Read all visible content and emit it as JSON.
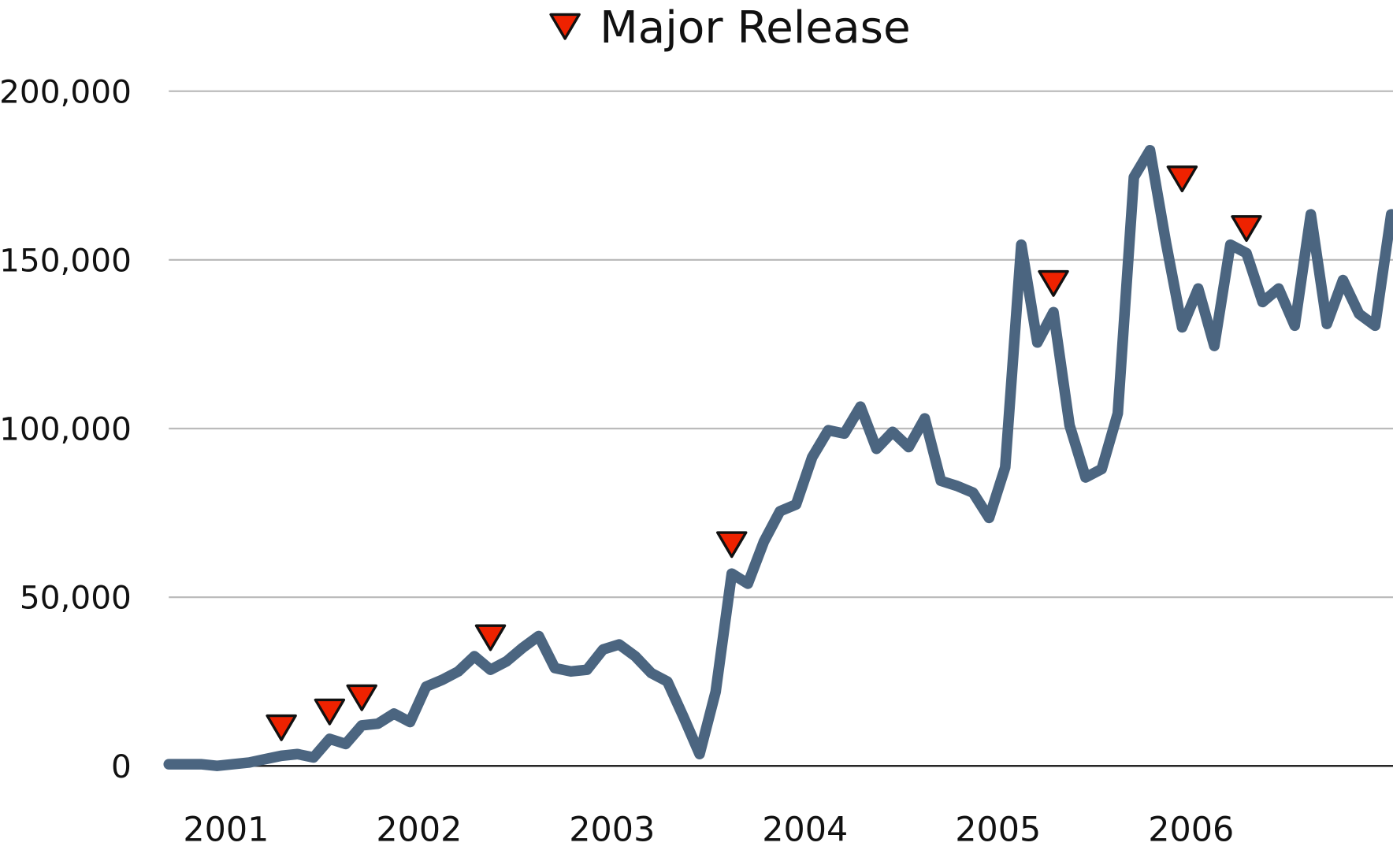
{
  "chart_data": {
    "type": "line",
    "categories": [
      null,
      null,
      null,
      null,
      "2001",
      null,
      null,
      null,
      null,
      null,
      null,
      null,
      null,
      null,
      null,
      null,
      "2002",
      null,
      null,
      null,
      null,
      null,
      null,
      null,
      null,
      null,
      null,
      null,
      "2003",
      null,
      null,
      null,
      null,
      null,
      null,
      null,
      null,
      null,
      null,
      null,
      "2004",
      null,
      null,
      null,
      null,
      null,
      null,
      null,
      null,
      null,
      null,
      null,
      "2005",
      null,
      null,
      null,
      null,
      null,
      null,
      null,
      null,
      null,
      null,
      null,
      "2006",
      null,
      null,
      null,
      null,
      null,
      null,
      null,
      null,
      null,
      null,
      null,
      null
    ],
    "series": [
      {
        "color": "#4b6580",
        "values": [
          500,
          500,
          500,
          0,
          500,
          1000,
          2000,
          3000,
          3500,
          2500,
          8000,
          6500,
          12000,
          12500,
          15500,
          13000,
          23500,
          25500,
          28000,
          32500,
          28500,
          31000,
          35000,
          38500,
          29000,
          28000,
          28500,
          34500,
          36000,
          32500,
          27500,
          25000,
          14500,
          3500,
          22000,
          57000,
          54000,
          66500,
          75500,
          77500,
          91500,
          99500,
          98500,
          106500,
          94000,
          99000,
          94500,
          103000,
          84500,
          83000,
          81000,
          73500,
          88500,
          154500,
          125500,
          134500,
          101000,
          85500,
          88000,
          104500,
          174500,
          182500,
          155000,
          130000,
          141500,
          124500,
          154500,
          152000,
          137500,
          141500,
          130500,
          163500,
          131000,
          144000,
          134000,
          130500,
          163500
        ]
      },
      {
        "name": "Major Release",
        "color": "#ee2200",
        "marker": "triangle-down",
        "values": [
          null,
          null,
          null,
          null,
          null,
          null,
          null,
          11300,
          null,
          null,
          16000,
          null,
          20200,
          null,
          null,
          null,
          null,
          null,
          null,
          null,
          38000,
          null,
          null,
          null,
          null,
          null,
          null,
          null,
          null,
          null,
          null,
          null,
          null,
          null,
          null,
          65600,
          null,
          null,
          null,
          null,
          null,
          null,
          null,
          null,
          null,
          null,
          null,
          null,
          null,
          null,
          null,
          null,
          null,
          null,
          null,
          143000,
          null,
          null,
          null,
          null,
          null,
          null,
          null,
          174000,
          null,
          null,
          null,
          159300,
          null,
          null,
          null,
          null,
          null,
          null,
          null,
          null,
          null
        ]
      }
    ],
    "ylim": [
      0,
      200000
    ],
    "yticks": [
      0,
      {
        "value": 50000,
        "label": "50,000"
      },
      {
        "value": 100000,
        "label": "100,000"
      },
      {
        "value": 150000,
        "label": "150,000"
      },
      {
        "value": 200000,
        "label": "200,000"
      }
    ],
    "grid": true,
    "legend": "top"
  }
}
